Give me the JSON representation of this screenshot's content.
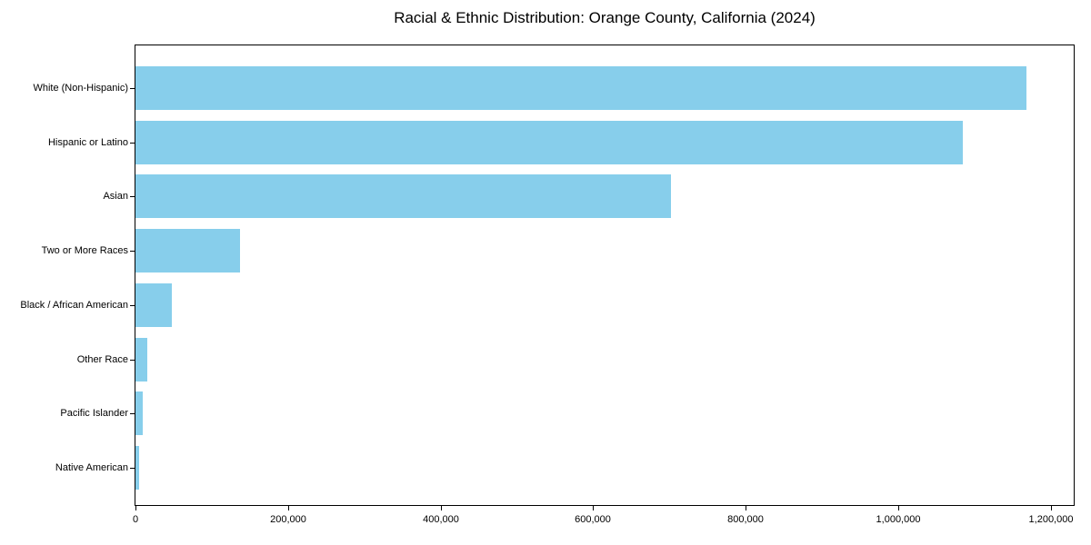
{
  "chart_data": {
    "type": "bar",
    "orientation": "horizontal",
    "title": "Racial & Ethnic Distribution: Orange County, California (2024)",
    "categories": [
      "White (Non-Hispanic)",
      "Hispanic or Latino",
      "Asian",
      "Two or More Races",
      "Black / African American",
      "Other Race",
      "Pacific Islander",
      "Native American"
    ],
    "values": [
      1168000,
      1084000,
      702000,
      137000,
      48000,
      16000,
      10000,
      5000
    ],
    "xlabel": "",
    "ylabel": "",
    "xlim": [
      0,
      1230000
    ],
    "x_ticks": [
      0,
      200000,
      400000,
      600000,
      800000,
      1000000,
      1200000
    ],
    "x_tick_labels": [
      "0",
      "200,000",
      "400,000",
      "600,000",
      "800,000",
      "1,000,000",
      "1,200,000"
    ],
    "bar_color": "#87CEEB",
    "background_color": "#ffffff",
    "spine_color": "#000000",
    "grid": false,
    "legend": null
  }
}
